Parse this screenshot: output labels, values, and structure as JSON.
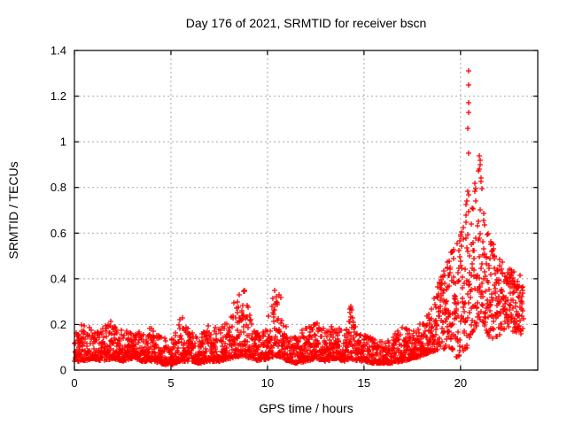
{
  "window": {
    "background": "#ffffff"
  },
  "chart_data": {
    "type": "scatter",
    "title": "Day 176 of 2021, SRMTID for receiver bscn",
    "xlabel": "GPS time / hours",
    "ylabel": "SRMTID / TECUs",
    "xlim": [
      0,
      24
    ],
    "ylim": [
      0,
      1.4
    ],
    "xticks": [
      0,
      5,
      10,
      15,
      20
    ],
    "xtick_labels": [
      "0",
      "5",
      "10",
      "15",
      "20"
    ],
    "yticks": [
      0,
      0.2,
      0.4,
      0.6,
      0.8,
      1,
      1.2,
      1.4
    ],
    "ytick_labels": [
      "0",
      "0.2",
      "0.4",
      "0.6",
      "0.8",
      "1",
      "1.2",
      "1.4"
    ],
    "grid": true,
    "grid_style": "dotted",
    "legend_position": "none",
    "marker_symbol": "plus",
    "marker_color": "#ff0000",
    "marker_size": 7,
    "axis_color": "#000000",
    "grid_color": "#a8a8a8",
    "series_name": "SRMTID for receiver bscn",
    "description": "Dense red plus-marker scatter: baseline band ~0.03-0.2 TECUs for hours 0-18, small spike clusters to ~0.35 near hours 8.8 and 10.3-10.6, rising activity after hour 18.5 with a tall sparse peak column reaching 1.31 TECUs near hour 20.4, secondary cluster ~0.9 near hour 21, decaying to 0.15-0.45 by the end of data at hour ~23.25",
    "x_start": 0.0,
    "x_end": 23.25,
    "n_points": 2600,
    "seed": 176,
    "band_skew_baseline": 2.1,
    "band_skew_peak": 1.25,
    "peak_skew_start": 18.8,
    "envelope": [
      [
        0.0,
        0.04,
        0.18
      ],
      [
        0.5,
        0.04,
        0.21
      ],
      [
        1.0,
        0.05,
        0.17
      ],
      [
        1.5,
        0.04,
        0.19
      ],
      [
        2.0,
        0.05,
        0.22
      ],
      [
        2.5,
        0.04,
        0.17
      ],
      [
        3.0,
        0.05,
        0.18
      ],
      [
        3.5,
        0.04,
        0.16
      ],
      [
        4.0,
        0.04,
        0.19
      ],
      [
        4.5,
        0.03,
        0.15
      ],
      [
        5.0,
        0.02,
        0.13
      ],
      [
        5.5,
        0.04,
        0.23
      ],
      [
        6.0,
        0.04,
        0.17
      ],
      [
        6.5,
        0.03,
        0.16
      ],
      [
        7.0,
        0.04,
        0.2
      ],
      [
        7.5,
        0.04,
        0.18
      ],
      [
        8.0,
        0.05,
        0.24
      ],
      [
        8.4,
        0.06,
        0.33
      ],
      [
        8.8,
        0.06,
        0.35
      ],
      [
        9.2,
        0.05,
        0.2
      ],
      [
        9.6,
        0.04,
        0.16
      ],
      [
        10.0,
        0.05,
        0.22
      ],
      [
        10.35,
        0.06,
        0.35
      ],
      [
        10.65,
        0.06,
        0.33
      ],
      [
        11.0,
        0.04,
        0.19
      ],
      [
        11.5,
        0.03,
        0.16
      ],
      [
        12.0,
        0.04,
        0.19
      ],
      [
        12.5,
        0.05,
        0.22
      ],
      [
        13.0,
        0.04,
        0.18
      ],
      [
        13.5,
        0.05,
        0.21
      ],
      [
        14.0,
        0.04,
        0.17
      ],
      [
        14.3,
        0.05,
        0.28
      ],
      [
        14.7,
        0.04,
        0.17
      ],
      [
        15.0,
        0.04,
        0.16
      ],
      [
        15.5,
        0.03,
        0.14
      ],
      [
        16.0,
        0.03,
        0.13
      ],
      [
        16.5,
        0.03,
        0.15
      ],
      [
        17.0,
        0.04,
        0.2
      ],
      [
        17.5,
        0.05,
        0.17
      ],
      [
        18.0,
        0.06,
        0.22
      ],
      [
        18.5,
        0.08,
        0.3
      ],
      [
        19.0,
        0.09,
        0.42
      ],
      [
        19.5,
        0.1,
        0.52
      ],
      [
        19.8,
        0.05,
        0.58
      ],
      [
        20.1,
        0.08,
        0.65
      ],
      [
        20.4,
        0.1,
        0.88
      ],
      [
        20.7,
        0.18,
        0.8
      ],
      [
        21.0,
        0.2,
        0.93
      ],
      [
        21.3,
        0.17,
        0.62
      ],
      [
        21.7,
        0.12,
        0.55
      ],
      [
        22.0,
        0.15,
        0.5
      ],
      [
        22.4,
        0.18,
        0.46
      ],
      [
        22.8,
        0.16,
        0.43
      ],
      [
        23.1,
        0.15,
        0.42
      ],
      [
        23.25,
        0.18,
        0.4
      ]
    ],
    "outliers": [
      [
        20.42,
        1.31
      ],
      [
        20.44,
        1.25
      ],
      [
        20.4,
        1.17
      ],
      [
        20.41,
        1.13
      ],
      [
        20.38,
        1.06
      ],
      [
        20.4,
        0.95
      ],
      [
        20.98,
        0.94
      ],
      [
        21.0,
        0.92
      ],
      [
        21.02,
        0.9
      ],
      [
        20.99,
        0.88
      ],
      [
        20.35,
        0.74
      ],
      [
        20.3,
        0.68
      ],
      [
        19.3,
        0.45
      ],
      [
        8.82,
        0.35
      ],
      [
        10.36,
        0.35
      ],
      [
        10.62,
        0.33
      ],
      [
        14.32,
        0.28
      ],
      [
        5.62,
        0.23
      ]
    ]
  }
}
